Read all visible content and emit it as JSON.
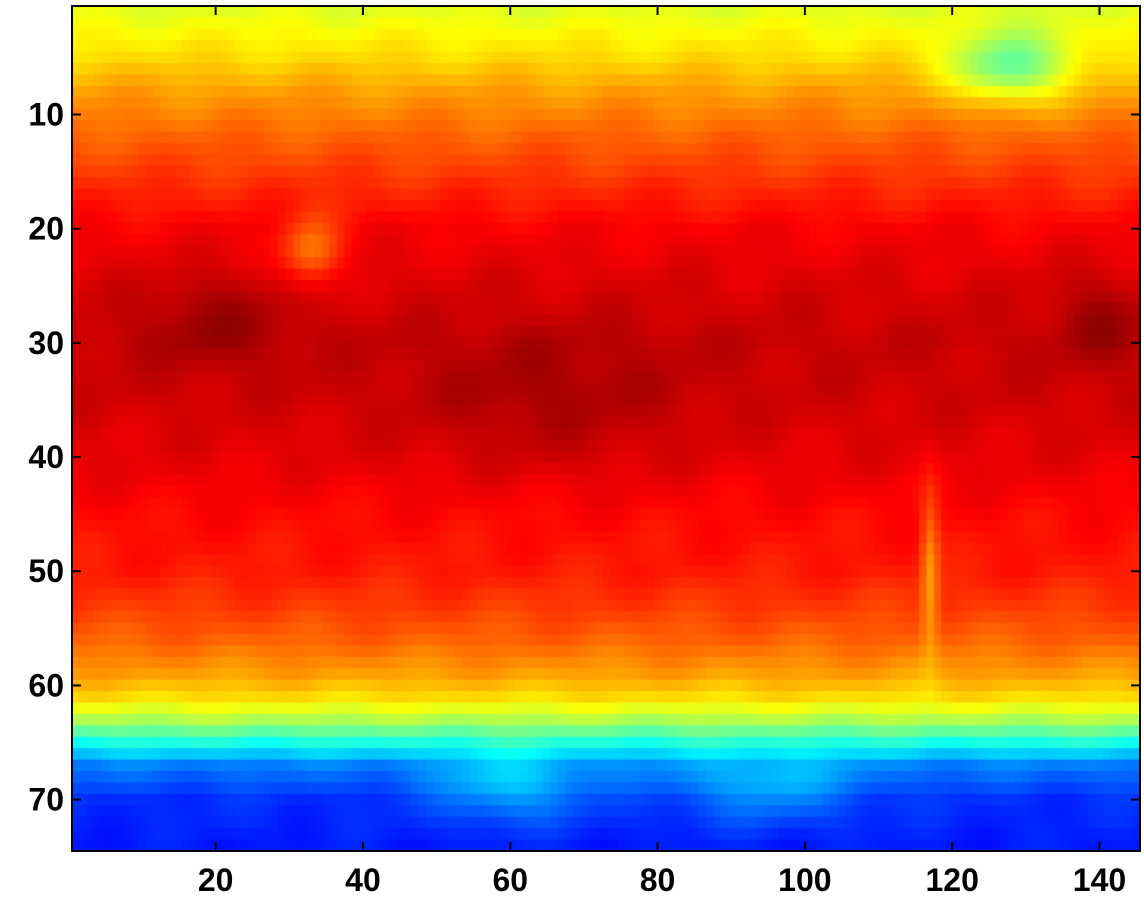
{
  "chart_data": {
    "type": "heatmap",
    "title": "",
    "xlabel": "",
    "ylabel": "",
    "colormap": "jet",
    "xlim": [
      1,
      145
    ],
    "ylim": [
      74,
      1
    ],
    "grid": false,
    "x_ticks": [
      20,
      40,
      60,
      80,
      100,
      120,
      140
    ],
    "y_ticks": [
      10,
      20,
      30,
      40,
      50,
      60,
      70
    ],
    "x_tick_labels": [
      "20",
      "40",
      "60",
      "80",
      "100",
      "120",
      "140"
    ],
    "y_tick_labels": [
      "10",
      "20",
      "30",
      "40",
      "50",
      "60",
      "70"
    ],
    "rows": 74,
    "cols": 145,
    "value_range": [
      0,
      1
    ],
    "zonal_profile": {
      "rows": [
        1,
        5,
        8,
        12,
        16,
        20,
        25,
        30,
        35,
        40,
        45,
        50,
        53,
        56,
        59,
        61,
        63,
        65,
        67,
        70,
        74
      ],
      "values": [
        0.6,
        0.66,
        0.72,
        0.78,
        0.83,
        0.88,
        0.91,
        0.93,
        0.92,
        0.9,
        0.87,
        0.85,
        0.82,
        0.78,
        0.72,
        0.66,
        0.55,
        0.4,
        0.25,
        0.17,
        0.15
      ]
    },
    "features": [
      {
        "name": "cool pocket",
        "row": 6,
        "col": 128,
        "row_spread": 3,
        "col_spread": 8,
        "delta": -0.2
      },
      {
        "name": "warm highland ring",
        "row": 22,
        "col": 33,
        "row_spread": 3,
        "col_spread": 4,
        "delta": -0.13
      },
      {
        "name": "warm core west",
        "row": 28,
        "col": 20,
        "row_spread": 4,
        "col_spread": 10,
        "delta": 0.05
      },
      {
        "name": "warm core centre",
        "row": 35,
        "col": 65,
        "row_spread": 6,
        "col_spread": 18,
        "delta": 0.04
      },
      {
        "name": "warm core east",
        "row": 28,
        "col": 140,
        "row_spread": 4,
        "col_spread": 6,
        "delta": 0.05
      },
      {
        "name": "meridional ridge",
        "row": 50,
        "col": 117,
        "row_spread": 7,
        "col_spread": 1.2,
        "delta": -0.12
      },
      {
        "name": "southern cyan pocket",
        "row": 69,
        "col": 60,
        "row_spread": 3,
        "col_spread": 10,
        "delta": 0.12
      },
      {
        "name": "southern cyan pocket",
        "row": 69,
        "col": 95,
        "row_spread": 3,
        "col_spread": 12,
        "delta": 0.1
      }
    ]
  }
}
